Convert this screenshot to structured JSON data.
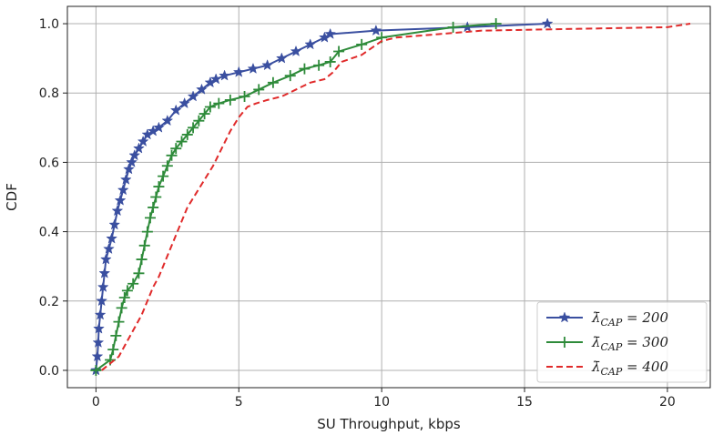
{
  "chart_data": {
    "type": "line",
    "title": "",
    "xlabel": "SU Throughput, kbps",
    "ylabel": "CDF",
    "xlim": [
      -1,
      21.5
    ],
    "ylim": [
      -0.05,
      1.05
    ],
    "x_ticks": [
      0,
      5,
      10,
      15,
      20
    ],
    "x_tick_labels": [
      "0",
      "5",
      "10",
      "15",
      "20"
    ],
    "y_ticks": [
      0.0,
      0.2,
      0.4,
      0.6,
      0.8,
      1.0
    ],
    "y_tick_labels": [
      "0.0",
      "0.2",
      "0.4",
      "0.6",
      "0.8",
      "1.0"
    ],
    "grid": true,
    "legend_position": "bottom-right",
    "series": [
      {
        "name": "λ̄_CAP = 200",
        "legend_label": {
          "symbol": "λ̄",
          "subscript": "CAP",
          "rest": " = 200"
        },
        "color": "#3a4fa0",
        "line_style": "solid",
        "marker": "star",
        "x": [
          0.0,
          0.05,
          0.08,
          0.1,
          0.15,
          0.2,
          0.25,
          0.3,
          0.35,
          0.45,
          0.55,
          0.65,
          0.75,
          0.85,
          0.95,
          1.05,
          1.15,
          1.25,
          1.35,
          1.5,
          1.65,
          1.8,
          2.0,
          2.2,
          2.5,
          2.8,
          3.1,
          3.4,
          3.7,
          4.0,
          4.2,
          4.5,
          5.0,
          5.5,
          6.0,
          6.5,
          7.0,
          7.5,
          8.0,
          8.2,
          9.8,
          13.0,
          15.8
        ],
        "y": [
          0.0,
          0.04,
          0.08,
          0.12,
          0.16,
          0.2,
          0.24,
          0.28,
          0.32,
          0.35,
          0.38,
          0.42,
          0.46,
          0.49,
          0.52,
          0.55,
          0.58,
          0.6,
          0.62,
          0.64,
          0.66,
          0.68,
          0.69,
          0.7,
          0.72,
          0.75,
          0.77,
          0.79,
          0.81,
          0.83,
          0.84,
          0.85,
          0.86,
          0.87,
          0.88,
          0.9,
          0.92,
          0.94,
          0.96,
          0.97,
          0.98,
          0.99,
          1.0
        ]
      },
      {
        "name": "λ̄_CAP = 300",
        "legend_label": {
          "symbol": "λ̄",
          "subscript": "CAP",
          "rest": " = 300"
        },
        "color": "#2e8b3a",
        "line_style": "solid",
        "marker": "plus",
        "x": [
          0.0,
          0.5,
          0.6,
          0.7,
          0.8,
          0.9,
          1.0,
          1.1,
          1.3,
          1.5,
          1.6,
          1.7,
          1.8,
          1.9,
          2.0,
          2.1,
          2.2,
          2.35,
          2.5,
          2.65,
          2.8,
          3.0,
          3.2,
          3.4,
          3.6,
          3.8,
          4.0,
          4.3,
          4.7,
          5.2,
          5.7,
          6.2,
          6.8,
          7.3,
          7.8,
          8.2,
          8.5,
          9.3,
          10.0,
          12.5,
          14.0
        ],
        "y": [
          0.0,
          0.03,
          0.06,
          0.1,
          0.14,
          0.18,
          0.21,
          0.23,
          0.25,
          0.28,
          0.32,
          0.36,
          0.4,
          0.44,
          0.47,
          0.5,
          0.53,
          0.56,
          0.59,
          0.62,
          0.64,
          0.66,
          0.68,
          0.7,
          0.72,
          0.74,
          0.76,
          0.77,
          0.78,
          0.79,
          0.81,
          0.83,
          0.85,
          0.87,
          0.88,
          0.89,
          0.92,
          0.94,
          0.96,
          0.99,
          1.0
        ]
      },
      {
        "name": "λ̄_CAP = 400",
        "legend_label": {
          "symbol": "λ̄",
          "subscript": "CAP",
          "rest": " = 400"
        },
        "color": "#e02a2a",
        "line_style": "dashed",
        "marker": "none",
        "x": [
          0.2,
          0.5,
          0.8,
          1.0,
          1.2,
          1.4,
          1.6,
          1.8,
          2.0,
          2.2,
          2.4,
          2.6,
          2.8,
          3.0,
          3.2,
          3.5,
          3.8,
          4.1,
          4.4,
          4.7,
          5.0,
          5.3,
          5.6,
          6.0,
          6.5,
          7.0,
          7.5,
          8.0,
          8.3,
          8.6,
          9.3,
          10.0,
          10.5,
          12.0,
          13.5,
          20.0,
          20.8
        ],
        "y": [
          0.0,
          0.02,
          0.04,
          0.07,
          0.1,
          0.13,
          0.16,
          0.2,
          0.24,
          0.27,
          0.31,
          0.35,
          0.39,
          0.43,
          0.47,
          0.51,
          0.55,
          0.59,
          0.64,
          0.69,
          0.73,
          0.76,
          0.77,
          0.78,
          0.79,
          0.81,
          0.83,
          0.84,
          0.86,
          0.89,
          0.91,
          0.95,
          0.96,
          0.97,
          0.98,
          0.99,
          1.0
        ]
      }
    ]
  }
}
